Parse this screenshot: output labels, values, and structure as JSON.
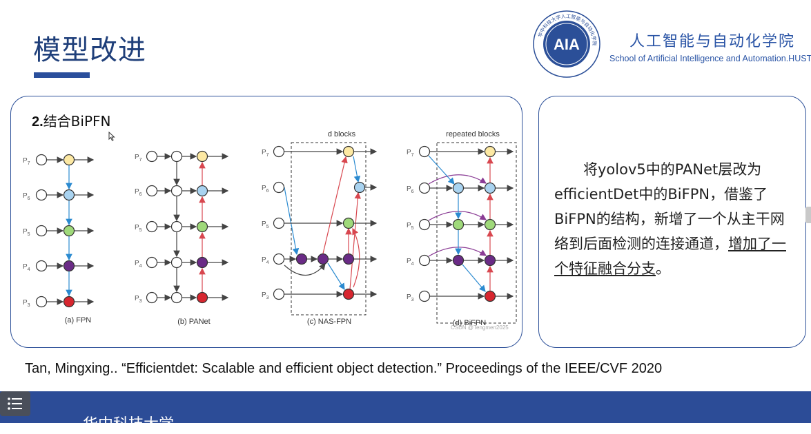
{
  "slide": {
    "title": "模型改进",
    "subheading_num": "2.",
    "subheading_text": "结合BiPFN",
    "school_cn": "人工智能与自动化学院",
    "school_en": "School of Artificial Intelligence and Automation.HUST",
    "logo_text": "AIA",
    "logo_ring_text": "华中科技大学人工智能与自动化学院",
    "body_text_main": "将yolov5中的PANet层改为efficientDet中的BiFPN，借鉴了BiFPN的结构，新增了一个从主干网络到后面检测的连接通道，",
    "body_text_underlined": "增加了一个特征融合分支",
    "body_text_end": "。",
    "citation": "Tan, Mingxing.. “Efficientdet: Scalable and efficient object detection.” Proceedings of the IEEE/CVF 2020",
    "footer_text": "华中科技大学",
    "menu_icon": "menu-icon"
  },
  "diagram": {
    "level_labels": [
      "P7",
      "P6",
      "P5",
      "P4",
      "P3"
    ],
    "captions": [
      "(a) FPN",
      "(b) PANet",
      "(c) NAS-FPN",
      "(d) BiFPN"
    ],
    "block_labels": [
      "d blocks",
      "repeated blocks"
    ],
    "watermark": "CSDN @Tengmen2025",
    "colors": {
      "P7": "#fde9a3",
      "P6": "#a9d3f0",
      "P5": "#9fd97a",
      "P4": "#6a2b86",
      "P3": "#d7262f",
      "blue_edge": "#2a8ad0",
      "red_edge": "#d8474f",
      "purple_edge": "#8a3c95",
      "frame": "#2b4f98"
    }
  }
}
